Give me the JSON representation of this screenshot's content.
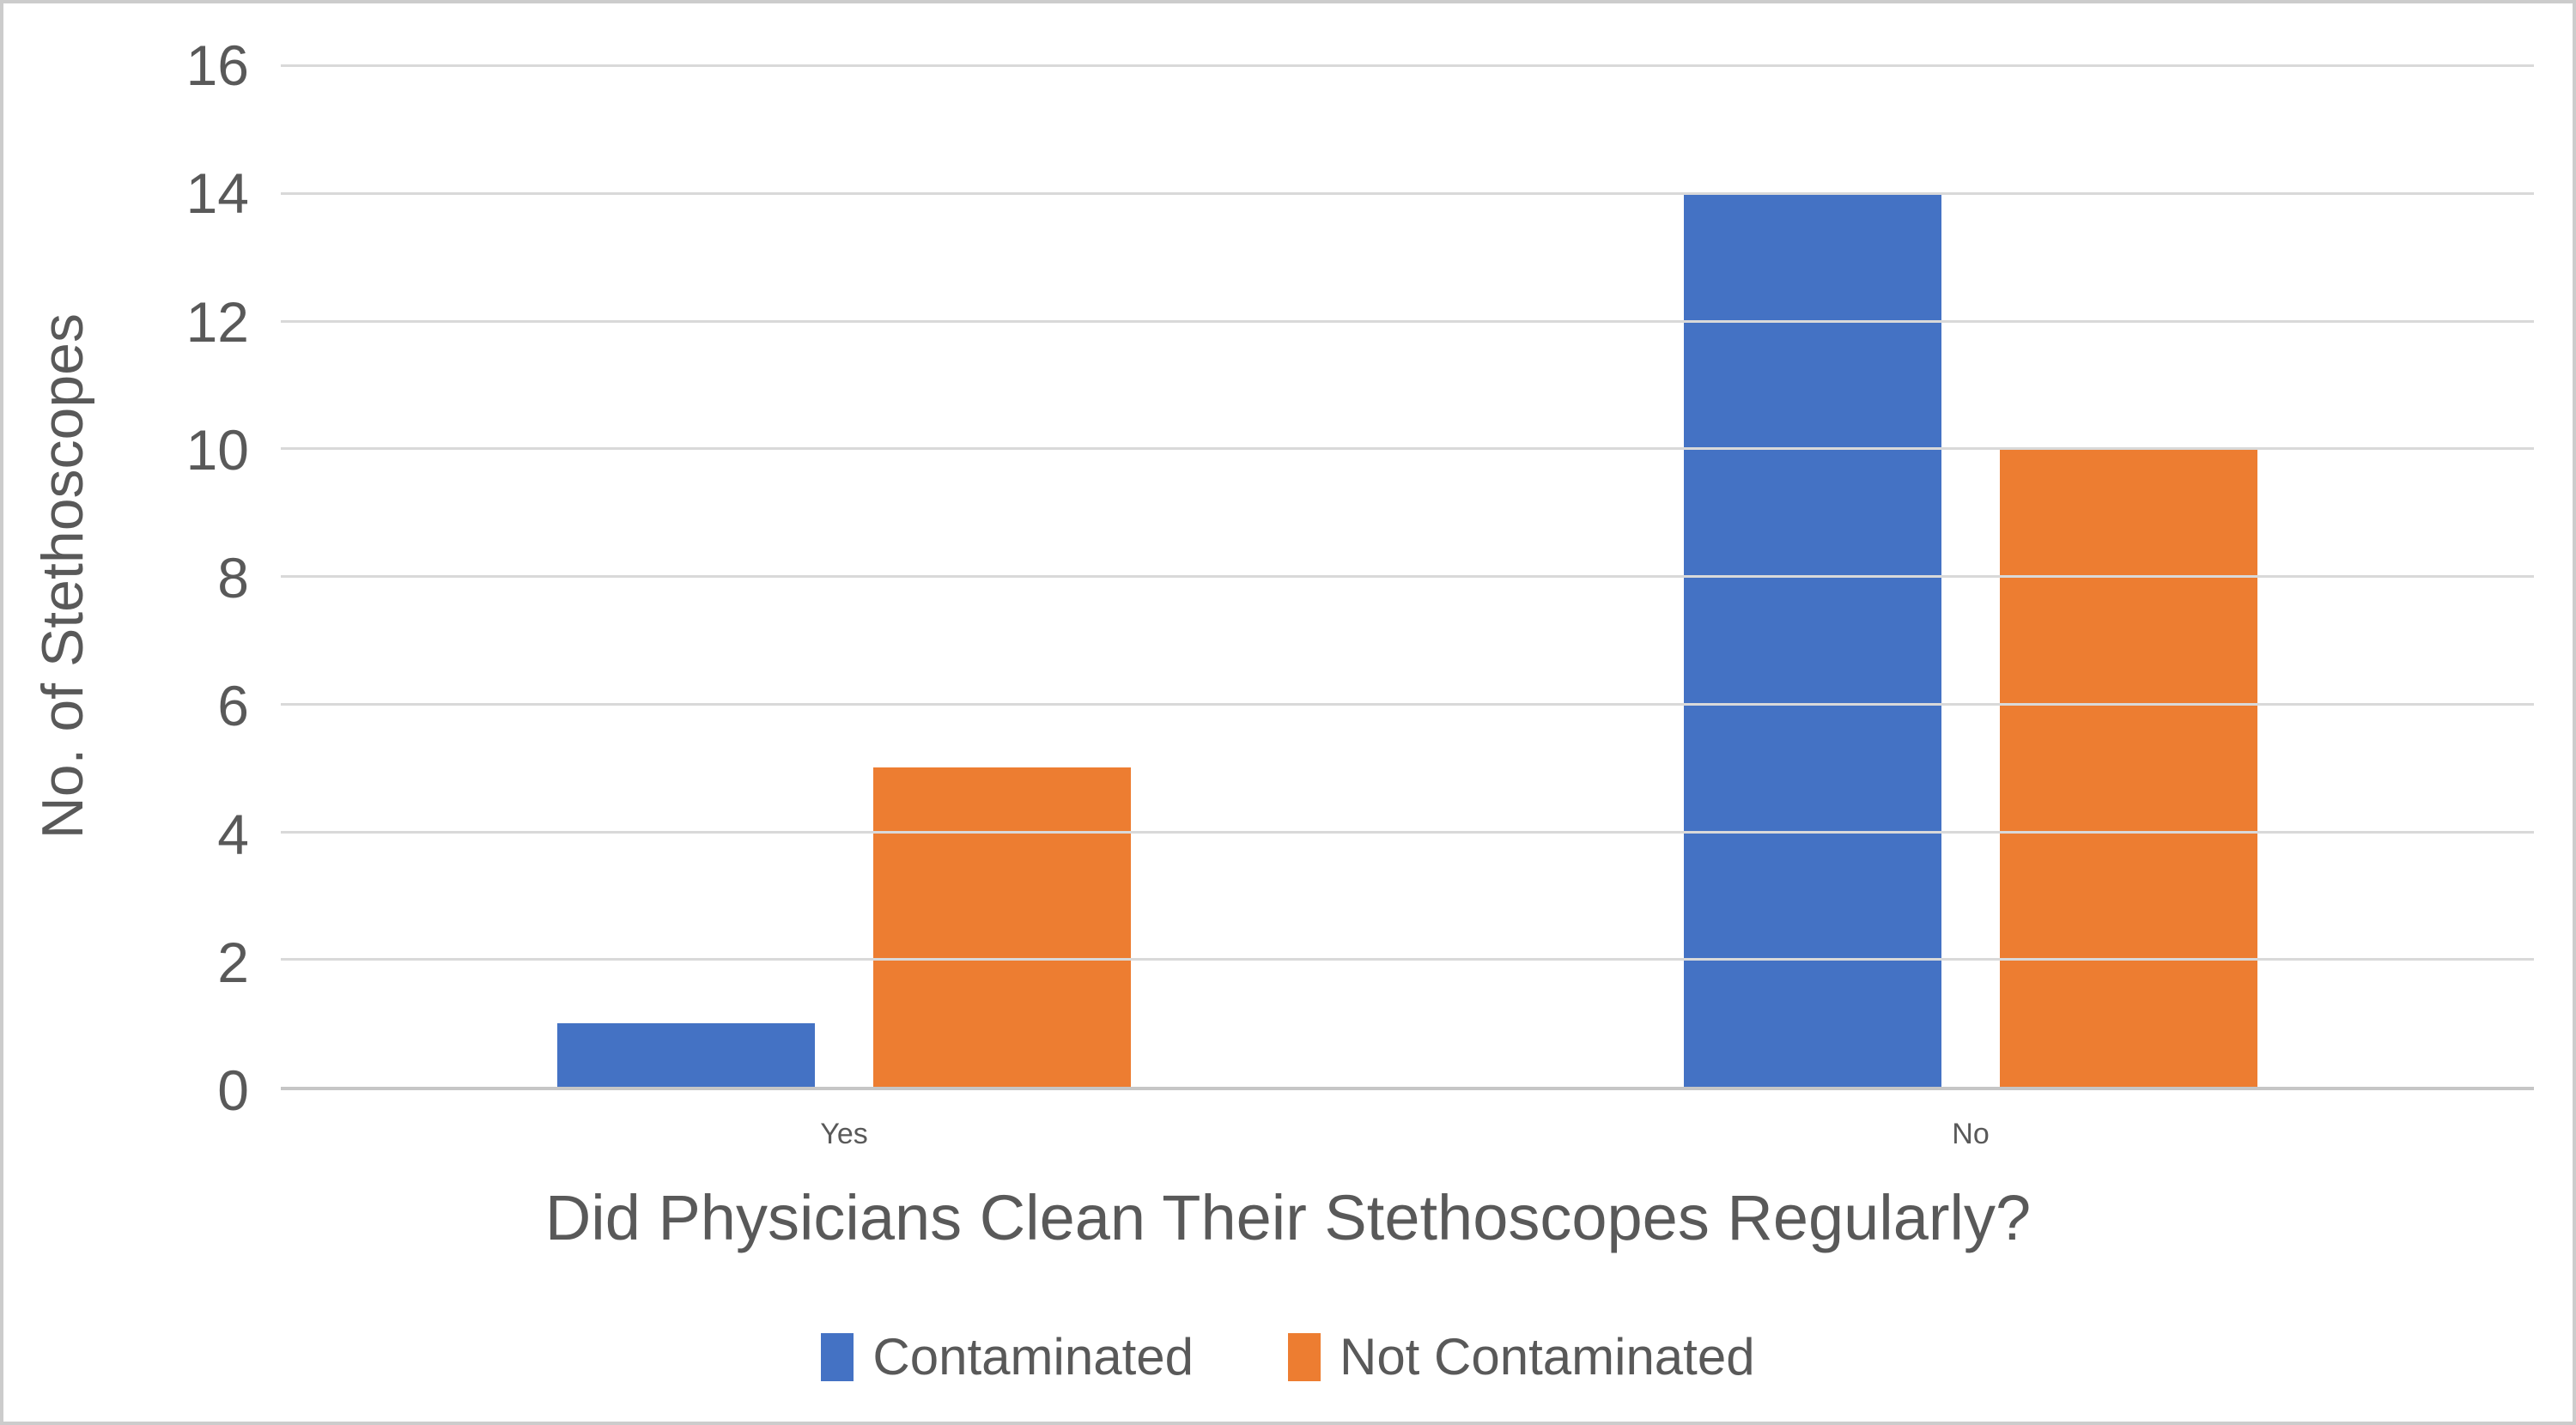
{
  "chart_data": {
    "type": "bar",
    "categories": [
      "Yes",
      "No"
    ],
    "series": [
      {
        "name": "Contaminated",
        "color": "#4472C4",
        "values": [
          1,
          14
        ]
      },
      {
        "name": "Not Contaminated",
        "color": "#ED7D31",
        "values": [
          5,
          10
        ]
      }
    ],
    "xlabel": "Did Physicians Clean Their Stethoscopes Regularly?",
    "ylabel": "No. of Stethoscopes",
    "ylim": [
      0,
      16
    ],
    "yticks": [
      0,
      2,
      4,
      6,
      8,
      10,
      12,
      14,
      16
    ],
    "grid": true,
    "legend_position": "bottom"
  },
  "colors": {
    "text": "#595959",
    "gridline": "#D9D9D9",
    "axis_line": "#C6C6C6",
    "page_border": "#CCCCCC",
    "background": "#FFFFFF"
  }
}
